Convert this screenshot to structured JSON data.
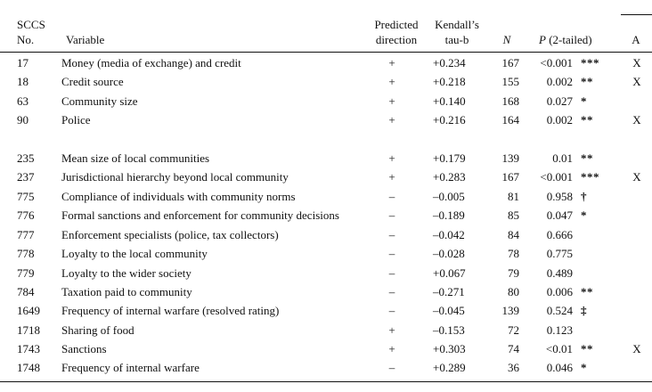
{
  "header": {
    "sccs_line1": "SCCS",
    "sccs_line2": "No.",
    "variable": "Variable",
    "predicted_line1": "Predicted",
    "predicted_line2": "direction",
    "tau_line1": "Kendall’s",
    "tau_line2": "tau-b",
    "n": "N",
    "p_italic": "P",
    "p_rest": " (2-tailed)",
    "a": "A"
  },
  "rows": [
    {
      "sccs": "17",
      "variable": "Money (media of exchange) and credit",
      "direction": "+",
      "tau": "+0.234",
      "n": "167",
      "p": "<0.001",
      "sig": "***",
      "a": "X"
    },
    {
      "sccs": "18",
      "variable": "Credit source",
      "direction": "+",
      "tau": "+0.218",
      "n": "155",
      "p": "0.002",
      "sig": "**",
      "a": "X"
    },
    {
      "sccs": "63",
      "variable": "Community size",
      "direction": "+",
      "tau": "+0.140",
      "n": "168",
      "p": "0.027",
      "sig": "*",
      "a": ""
    },
    {
      "sccs": "90",
      "variable": "Police",
      "direction": "+",
      "tau": "+0.216",
      "n": "164",
      "p": "0.002",
      "sig": "**",
      "a": "X"
    },
    {
      "sccs": "235",
      "variable": "Mean size of local communities",
      "direction": "+",
      "tau": "+0.179",
      "n": "139",
      "p": "0.01",
      "sig": "**",
      "a": ""
    },
    {
      "sccs": "237",
      "variable": "Jurisdictional hierarchy beyond local community",
      "direction": "+",
      "tau": "+0.283",
      "n": "167",
      "p": "<0.001",
      "sig": "***",
      "a": "X"
    },
    {
      "sccs": "775",
      "variable": "Compliance of individuals with community norms",
      "direction": "–",
      "tau": "–0.005",
      "n": "81",
      "p": "0.958",
      "sig": "†",
      "a": ""
    },
    {
      "sccs": "776",
      "variable": "Formal sanctions and enforcement for community decisions",
      "direction": "–",
      "tau": "–0.189",
      "n": "85",
      "p": "0.047",
      "sig": "*",
      "a": ""
    },
    {
      "sccs": "777",
      "variable": "Enforcement specialists (police, tax collectors)",
      "direction": "–",
      "tau": "–0.042",
      "n": "84",
      "p": "0.666",
      "sig": "",
      "a": ""
    },
    {
      "sccs": "778",
      "variable": "Loyalty to the local community",
      "direction": "–",
      "tau": "–0.028",
      "n": "78",
      "p": "0.775",
      "sig": "",
      "a": ""
    },
    {
      "sccs": "779",
      "variable": "Loyalty to the wider society",
      "direction": "–",
      "tau": "+0.067",
      "n": "79",
      "p": "0.489",
      "sig": "",
      "a": ""
    },
    {
      "sccs": "784",
      "variable": "Taxation paid to community",
      "direction": "–",
      "tau": "–0.271",
      "n": "80",
      "p": "0.006",
      "sig": "**",
      "a": ""
    },
    {
      "sccs": "1649",
      "variable": "Frequency of internal warfare (resolved rating)",
      "direction": "–",
      "tau": "–0.045",
      "n": "139",
      "p": "0.524",
      "sig": "‡",
      "a": ""
    },
    {
      "sccs": "1718",
      "variable": "Sharing of food",
      "direction": "+",
      "tau": "–0.153",
      "n": "72",
      "p": "0.123",
      "sig": "",
      "a": ""
    },
    {
      "sccs": "1743",
      "variable": "Sanctions",
      "direction": "+",
      "tau": "+0.303",
      "n": "74",
      "p": "<0.01",
      "sig": "**",
      "a": "X"
    },
    {
      "sccs": "1748",
      "variable": "Frequency of internal warfare",
      "direction": "–",
      "tau": "+0.289",
      "n": "36",
      "p": "0.046",
      "sig": "*",
      "a": ""
    }
  ]
}
